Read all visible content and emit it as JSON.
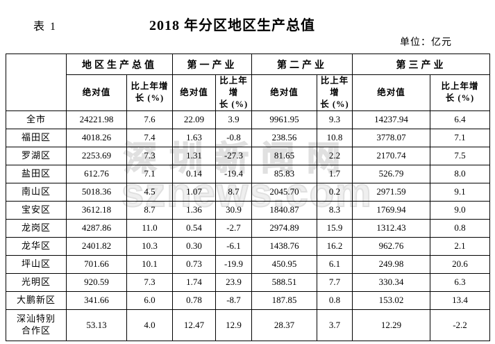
{
  "header": {
    "table_label": "表 1",
    "title": "2018 年分区地区生产总值",
    "unit_note": "单位：亿元"
  },
  "watermark": {
    "line1": "深圳新闻网",
    "line2": "sznews.com"
  },
  "colors": {
    "text": "#000000",
    "border": "#000000",
    "watermark": "#e0e0e0",
    "background": "#ffffff"
  },
  "table": {
    "groups": [
      "地区生产总值",
      "第一产业",
      "第二产业",
      "第三产业"
    ],
    "sub_abs": "绝对值",
    "sub_growth": "比上年增\n长 (%)",
    "rows": [
      {
        "region": "全市",
        "values": [
          "24221.98",
          "7.6",
          "22.09",
          "3.9",
          "9961.95",
          "9.3",
          "14237.94",
          "6.4"
        ]
      },
      {
        "region": "福田区",
        "values": [
          "4018.26",
          "7.4",
          "1.63",
          "-0.8",
          "238.56",
          "10.8",
          "3778.07",
          "7.1"
        ]
      },
      {
        "region": "罗湖区",
        "values": [
          "2253.69",
          "7.3",
          "1.31",
          "-27.3",
          "81.65",
          "2.2",
          "2170.74",
          "7.5"
        ]
      },
      {
        "region": "盐田区",
        "values": [
          "612.76",
          "7.1",
          "0.14",
          "-19.4",
          "85.83",
          "1.7",
          "526.79",
          "8.0"
        ]
      },
      {
        "region": "南山区",
        "values": [
          "5018.36",
          "4.5",
          "1.07",
          "8.7",
          "2045.70",
          "0.2",
          "2971.59",
          "9.1"
        ]
      },
      {
        "region": "宝安区",
        "values": [
          "3612.18",
          "8.7",
          "1.36",
          "30.9",
          "1840.87",
          "8.3",
          "1769.94",
          "9.0"
        ]
      },
      {
        "region": "龙岗区",
        "values": [
          "4287.86",
          "11.0",
          "0.54",
          "-2.7",
          "2974.89",
          "15.9",
          "1312.43",
          "0.8"
        ]
      },
      {
        "region": "龙华区",
        "values": [
          "2401.82",
          "10.3",
          "0.30",
          "-6.1",
          "1438.76",
          "16.2",
          "962.76",
          "2.1"
        ]
      },
      {
        "region": "坪山区",
        "values": [
          "701.66",
          "10.1",
          "0.73",
          "-19.9",
          "450.95",
          "6.1",
          "249.98",
          "20.6"
        ]
      },
      {
        "region": "光明区",
        "values": [
          "920.59",
          "7.3",
          "1.74",
          "23.9",
          "588.51",
          "7.7",
          "330.34",
          "6.3"
        ]
      },
      {
        "region": "大鹏新区",
        "values": [
          "341.66",
          "6.0",
          "0.78",
          "-8.7",
          "187.85",
          "0.8",
          "153.02",
          "13.4"
        ]
      },
      {
        "region": "深汕特别\n合作区",
        "values": [
          "53.13",
          "4.0",
          "12.47",
          "12.9",
          "28.37",
          "3.7",
          "12.29",
          "-2.2"
        ]
      }
    ]
  },
  "chart_data": {
    "type": "table",
    "title": "2018 年分区地区生产总值",
    "unit": "亿元",
    "column_groups": [
      "地区生产总值",
      "第一产业",
      "第二产业",
      "第三产业"
    ],
    "sub_columns": [
      "绝对值",
      "比上年增长(%)"
    ],
    "regions": [
      "全市",
      "福田区",
      "罗湖区",
      "盐田区",
      "南山区",
      "宝安区",
      "龙岗区",
      "龙华区",
      "坪山区",
      "光明区",
      "大鹏新区",
      "深汕特别合作区"
    ],
    "gdp_absolute": [
      24221.98,
      4018.26,
      2253.69,
      612.76,
      5018.36,
      3612.18,
      4287.86,
      2401.82,
      701.66,
      920.59,
      341.66,
      53.13
    ],
    "gdp_growth": [
      7.6,
      7.4,
      7.3,
      7.1,
      4.5,
      8.7,
      11.0,
      10.3,
      10.1,
      7.3,
      6.0,
      4.0
    ],
    "primary_absolute": [
      22.09,
      1.63,
      1.31,
      0.14,
      1.07,
      1.36,
      0.54,
      0.3,
      0.73,
      1.74,
      0.78,
      12.47
    ],
    "primary_growth": [
      3.9,
      -0.8,
      -27.3,
      -19.4,
      8.7,
      30.9,
      -2.7,
      -6.1,
      -19.9,
      23.9,
      -8.7,
      12.9
    ],
    "secondary_absolute": [
      9961.95,
      238.56,
      81.65,
      85.83,
      2045.7,
      1840.87,
      2974.89,
      1438.76,
      450.95,
      588.51,
      187.85,
      28.37
    ],
    "secondary_growth": [
      9.3,
      10.8,
      2.2,
      1.7,
      0.2,
      8.3,
      15.9,
      16.2,
      6.1,
      7.7,
      0.8,
      3.7
    ],
    "tertiary_absolute": [
      14237.94,
      3778.07,
      2170.74,
      526.79,
      2971.59,
      1769.94,
      1312.43,
      962.76,
      249.98,
      330.34,
      153.02,
      12.29
    ],
    "tertiary_growth": [
      6.4,
      7.1,
      7.5,
      8.0,
      9.1,
      9.0,
      0.8,
      2.1,
      20.6,
      6.3,
      13.4,
      -2.2
    ]
  }
}
